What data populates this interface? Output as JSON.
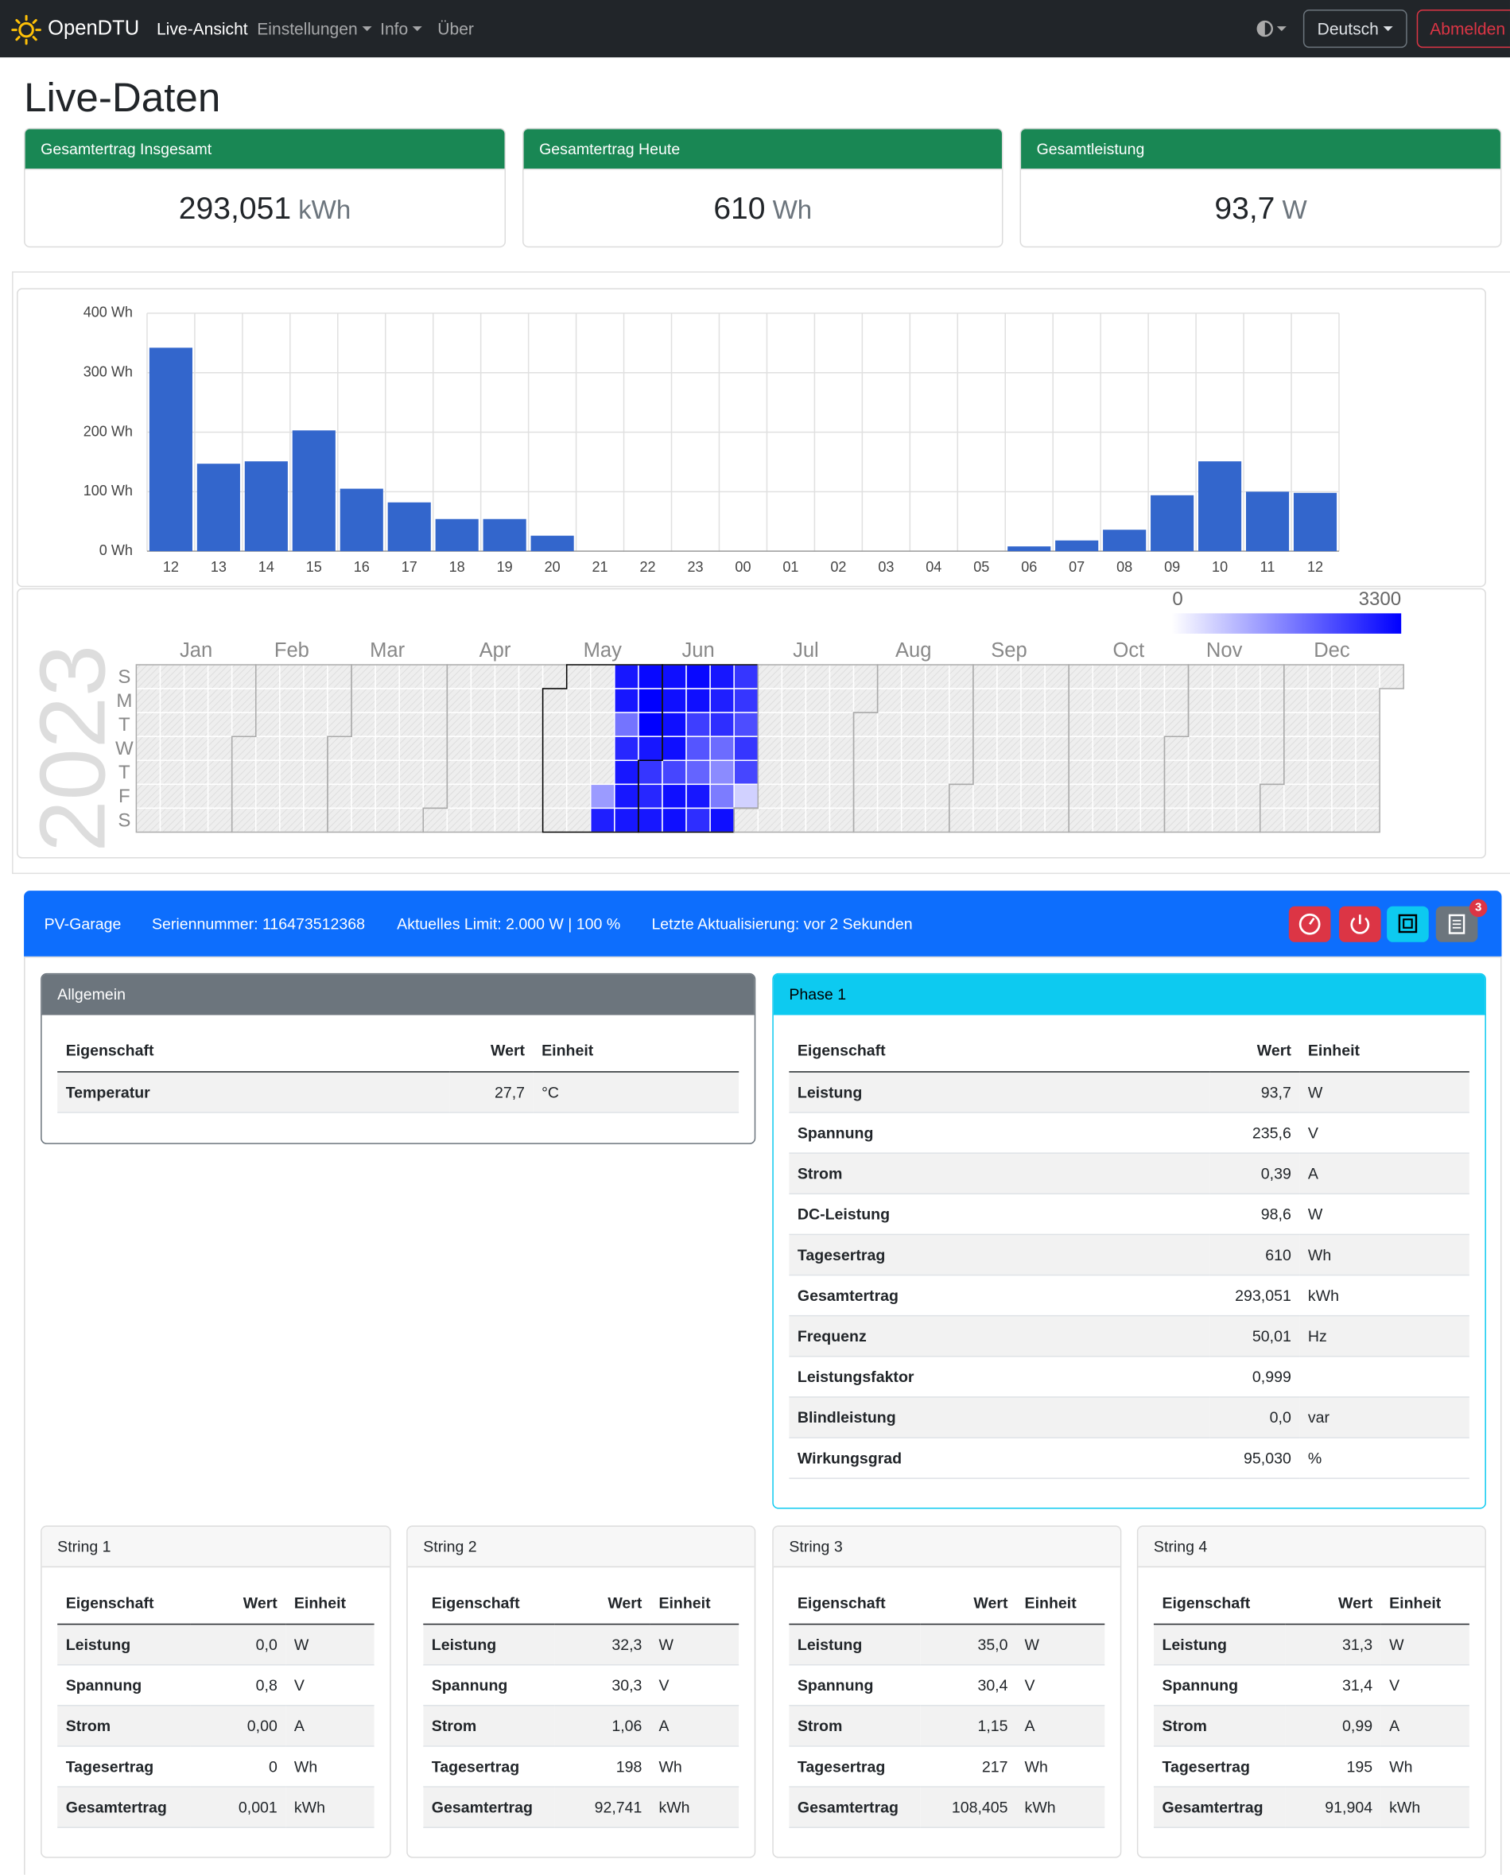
{
  "nav": {
    "brand": "OpenDTU",
    "links": [
      "Live-Ansicht",
      "Einstellungen",
      "Info",
      "Über"
    ],
    "language": "Deutsch",
    "logout": "Abmelden"
  },
  "title": "Live-Daten",
  "cards": [
    {
      "title": "Gesamtertrag Insgesamt",
      "value": "293,051",
      "unit": "kWh"
    },
    {
      "title": "Gesamtertrag Heute",
      "value": "610",
      "unit": "Wh"
    },
    {
      "title": "Gesamtleistung",
      "value": "93,7",
      "unit": "W"
    }
  ],
  "chart_data": [
    {
      "type": "bar",
      "categories": [
        "12",
        "13",
        "14",
        "15",
        "16",
        "17",
        "18",
        "19",
        "20",
        "21",
        "22",
        "23",
        "00",
        "01",
        "02",
        "03",
        "04",
        "05",
        "06",
        "07",
        "08",
        "09",
        "10",
        "11",
        "12"
      ],
      "values": [
        342,
        147,
        151,
        203,
        105,
        82,
        54,
        54,
        26,
        0,
        0,
        0,
        0,
        0,
        0,
        0,
        0,
        0,
        8,
        18,
        36,
        94,
        151,
        100,
        98
      ],
      "color": "#3366cc",
      "ylim": [
        0,
        400
      ],
      "yticks": [
        {
          "value": 0,
          "label": "0 Wh"
        },
        {
          "value": 100,
          "label": "100 Wh"
        },
        {
          "value": 200,
          "label": "200 Wh"
        },
        {
          "value": 300,
          "label": "300 Wh"
        },
        {
          "value": 400,
          "label": "400 Wh"
        }
      ],
      "grid": true
    },
    {
      "type": "heatmap",
      "title": "2023",
      "months": [
        "Jan",
        "Feb",
        "Mar",
        "Apr",
        "May",
        "Jun",
        "Jul",
        "Aug",
        "Sep",
        "Oct",
        "Nov",
        "Dec"
      ],
      "weekdays": [
        "S",
        "M",
        "T",
        "W",
        "T",
        "F",
        "S"
      ],
      "zlim": [
        0,
        3300
      ],
      "colorscale": [
        "#ffffff",
        "#0000ff"
      ],
      "values": [
        null,
        null,
        null,
        null,
        null,
        null,
        null,
        null,
        null,
        null,
        null,
        null,
        null,
        null,
        null,
        null,
        null,
        null,
        null,
        null,
        null,
        null,
        null,
        null,
        null,
        null,
        null,
        null,
        null,
        null,
        null,
        null,
        null,
        null,
        null,
        null,
        null,
        null,
        null,
        null,
        null,
        null,
        null,
        null,
        null,
        null,
        null,
        null,
        null,
        null,
        null,
        null,
        null,
        null,
        null,
        null,
        null,
        null,
        null,
        null,
        null,
        null,
        null,
        null,
        null,
        null,
        null,
        null,
        null,
        null,
        null,
        null,
        null,
        null,
        null,
        null,
        null,
        null,
        null,
        null,
        null,
        null,
        null,
        null,
        null,
        null,
        null,
        null,
        null,
        null,
        null,
        null,
        null,
        null,
        null,
        null,
        null,
        null,
        null,
        null,
        null,
        null,
        null,
        null,
        null,
        null,
        null,
        null,
        null,
        null,
        null,
        null,
        null,
        null,
        null,
        null,
        null,
        null,
        null,
        null,
        null,
        null,
        null,
        null,
        null,
        null,
        null,
        null,
        null,
        null,
        null,
        null,
        null,
        null,
        null,
        null,
        null,
        null,
        1300,
        2900,
        3000,
        3000,
        1800,
        2800,
        3000,
        3000,
        3000,
        3200,
        3300,
        3300,
        3000,
        2600,
        2800,
        3000,
        3100,
        3100,
        3100,
        3100,
        2400,
        3100,
        3100,
        3200,
        3100,
        2500,
        2200,
        2000,
        3000,
        2700,
        3000,
        2900,
        2700,
        1900,
        1500,
        1700,
        3100,
        2600,
        2600,
        2300,
        2600,
        2400,
        600,
        null,
        null,
        null,
        null,
        null,
        null,
        null,
        null,
        null,
        null,
        null,
        null,
        null,
        null,
        null,
        null,
        null,
        null,
        null,
        null,
        null,
        null,
        null,
        null,
        null,
        null,
        null,
        null,
        null,
        null,
        null,
        null,
        null,
        null,
        null,
        null,
        null,
        null,
        null,
        null,
        null,
        null,
        null,
        null,
        null,
        null,
        null,
        null,
        null,
        null,
        null,
        null,
        null,
        null,
        null,
        null,
        null,
        null,
        null,
        null,
        null,
        null,
        null,
        null,
        null,
        null,
        null,
        null,
        null,
        null,
        null,
        null,
        null,
        null,
        null,
        null,
        null,
        null,
        null,
        null,
        null,
        null,
        null,
        null,
        null,
        null,
        null,
        null,
        null,
        null,
        null,
        null,
        null,
        null,
        null,
        null,
        null,
        null,
        null,
        null,
        null,
        null,
        null,
        null,
        null,
        null,
        null,
        null,
        null,
        null,
        null,
        null,
        null,
        null,
        null,
        null,
        null,
        null,
        null,
        null,
        null,
        null,
        null,
        null,
        null,
        null,
        null,
        null,
        null,
        null,
        null,
        null,
        null,
        null,
        null,
        null,
        null,
        null,
        null,
        null,
        null,
        null,
        null,
        null,
        null,
        null,
        null,
        null,
        null,
        null,
        null,
        null,
        null,
        null,
        null,
        null,
        null,
        null,
        null,
        null,
        null,
        null,
        null,
        null,
        null,
        null,
        null,
        null,
        null,
        null,
        null,
        null,
        null,
        null,
        null,
        null,
        null,
        null,
        null,
        null,
        null,
        null,
        null,
        null
      ]
    }
  ],
  "inverter": {
    "name": "PV-Garage",
    "serial": "Seriennummer: 116473512368",
    "limit": "Aktuelles Limit: 2.000 W | 100 %",
    "updated": "Letzte Aktualisierung: vor 2 Sekunden",
    "badge": "3",
    "tables": [
      {
        "title": "Allgemein",
        "columns": [
          "Eigenschaft",
          "Wert",
          "Einheit"
        ],
        "rows": [
          [
            "Temperatur",
            "27,7",
            "°C"
          ]
        ]
      },
      {
        "title": "Phase 1",
        "columns": [
          "Eigenschaft",
          "Wert",
          "Einheit"
        ],
        "rows": [
          [
            "Leistung",
            "93,7",
            "W"
          ],
          [
            "Spannung",
            "235,6",
            "V"
          ],
          [
            "Strom",
            "0,39",
            "A"
          ],
          [
            "DC-Leistung",
            "98,6",
            "W"
          ],
          [
            "Tagesertrag",
            "610",
            "Wh"
          ],
          [
            "Gesamtertrag",
            "293,051",
            "kWh"
          ],
          [
            "Frequenz",
            "50,01",
            "Hz"
          ],
          [
            "Leistungsfaktor",
            "0,999"
          ],
          [
            "Blindleistung",
            "0,0",
            "var"
          ],
          [
            "Wirkungsgrad",
            "95,030",
            "%"
          ]
        ]
      },
      {
        "title": "String 1",
        "columns": [
          "Eigenschaft",
          "Wert",
          "Einheit"
        ],
        "rows": [
          [
            "Leistung",
            "0,0",
            "W"
          ],
          [
            "Spannung",
            "0,8",
            "V"
          ],
          [
            "Strom",
            "0,00",
            "A"
          ],
          [
            "Tagesertrag",
            "0",
            "Wh"
          ],
          [
            "Gesamtertrag",
            "0,001",
            "kWh"
          ]
        ]
      },
      {
        "title": "String 2",
        "columns": [
          "Eigenschaft",
          "Wert",
          "Einheit"
        ],
        "rows": [
          [
            "Leistung",
            "32,3",
            "W"
          ],
          [
            "Spannung",
            "30,3",
            "V"
          ],
          [
            "Strom",
            "1,06",
            "A"
          ],
          [
            "Tagesertrag",
            "198",
            "Wh"
          ],
          [
            "Gesamtertrag",
            "92,741",
            "kWh"
          ]
        ]
      },
      {
        "title": "String 3",
        "columns": [
          "Eigenschaft",
          "Wert",
          "Einheit"
        ],
        "rows": [
          [
            "Leistung",
            "35,0",
            "W"
          ],
          [
            "Spannung",
            "30,4",
            "V"
          ],
          [
            "Strom",
            "1,15",
            "A"
          ],
          [
            "Tagesertrag",
            "217",
            "Wh"
          ],
          [
            "Gesamtertrag",
            "108,405",
            "kWh"
          ]
        ]
      },
      {
        "title": "String 4",
        "columns": [
          "Eigenschaft",
          "Wert",
          "Einheit"
        ],
        "rows": [
          [
            "Leistung",
            "31,3",
            "W"
          ],
          [
            "Spannung",
            "31,4",
            "V"
          ],
          [
            "Strom",
            "0,99",
            "A"
          ],
          [
            "Tagesertrag",
            "195",
            "Wh"
          ],
          [
            "Gesamtertrag",
            "91,904",
            "kWh"
          ]
        ]
      }
    ]
  }
}
